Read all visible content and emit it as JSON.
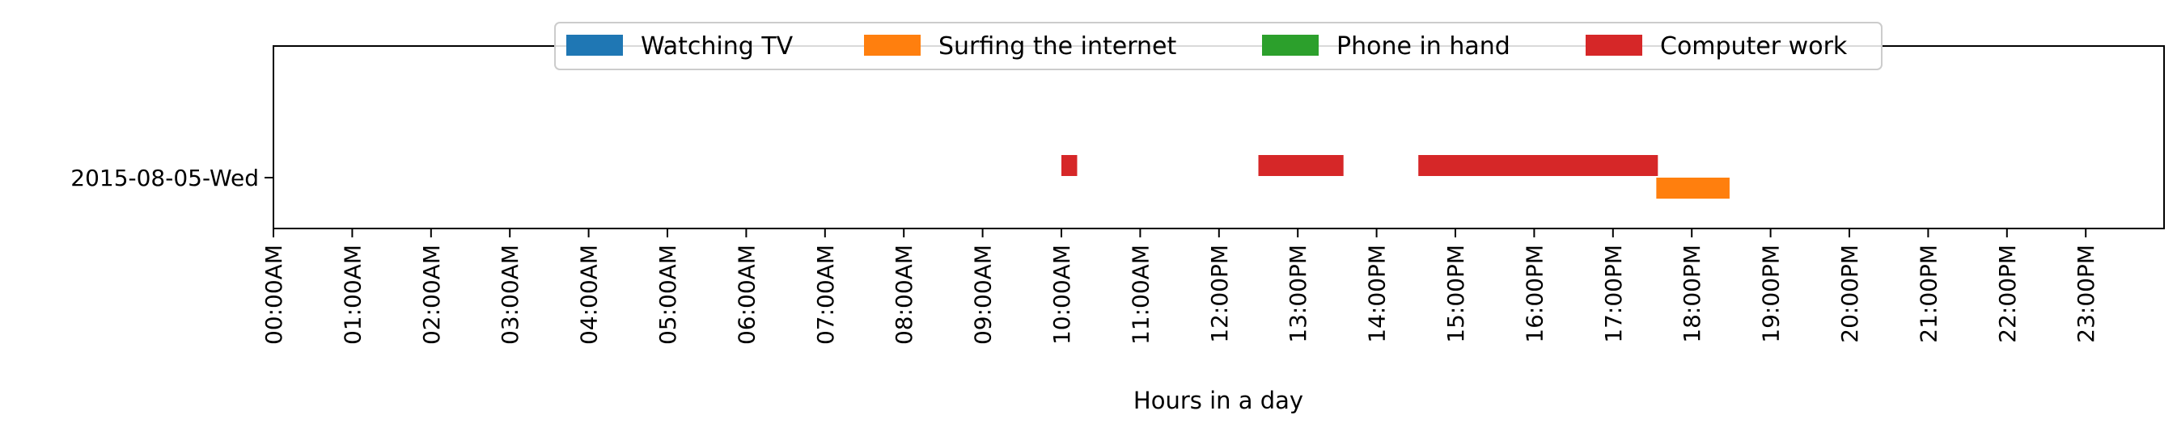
{
  "chart_data": {
    "type": "bar",
    "orientation": "horizontal-timeline",
    "title": "",
    "xlabel": "Hours in a day",
    "ylabel": "",
    "xlim": [
      0,
      24
    ],
    "x_ticks": [
      "00:00AM",
      "01:00AM",
      "02:00AM",
      "03:00AM",
      "04:00AM",
      "05:00AM",
      "06:00AM",
      "07:00AM",
      "08:00AM",
      "09:00AM",
      "10:00AM",
      "11:00AM",
      "12:00PM",
      "13:00PM",
      "14:00PM",
      "15:00PM",
      "16:00PM",
      "17:00PM",
      "18:00PM",
      "19:00PM",
      "20:00PM",
      "21:00PM",
      "22:00PM",
      "23:00PM"
    ],
    "categories": [
      "2015-08-05-Wed"
    ],
    "grid": false,
    "legend_position": "top-center",
    "series": [
      {
        "name": "Watching TV",
        "color": "#1f77b4",
        "segments": []
      },
      {
        "name": "Surfing the internet",
        "color": "#ff7f0e",
        "segments": [
          {
            "day": "2015-08-05-Wed",
            "start": 17.55,
            "end": 18.48
          }
        ]
      },
      {
        "name": "Phone in hand",
        "color": "#2ca02c",
        "segments": []
      },
      {
        "name": "Computer work",
        "color": "#d62728",
        "segments": [
          {
            "day": "2015-08-05-Wed",
            "start": 10.0,
            "end": 10.2
          },
          {
            "day": "2015-08-05-Wed",
            "start": 12.5,
            "end": 13.58
          },
          {
            "day": "2015-08-05-Wed",
            "start": 14.53,
            "end": 17.57
          }
        ]
      }
    ]
  }
}
